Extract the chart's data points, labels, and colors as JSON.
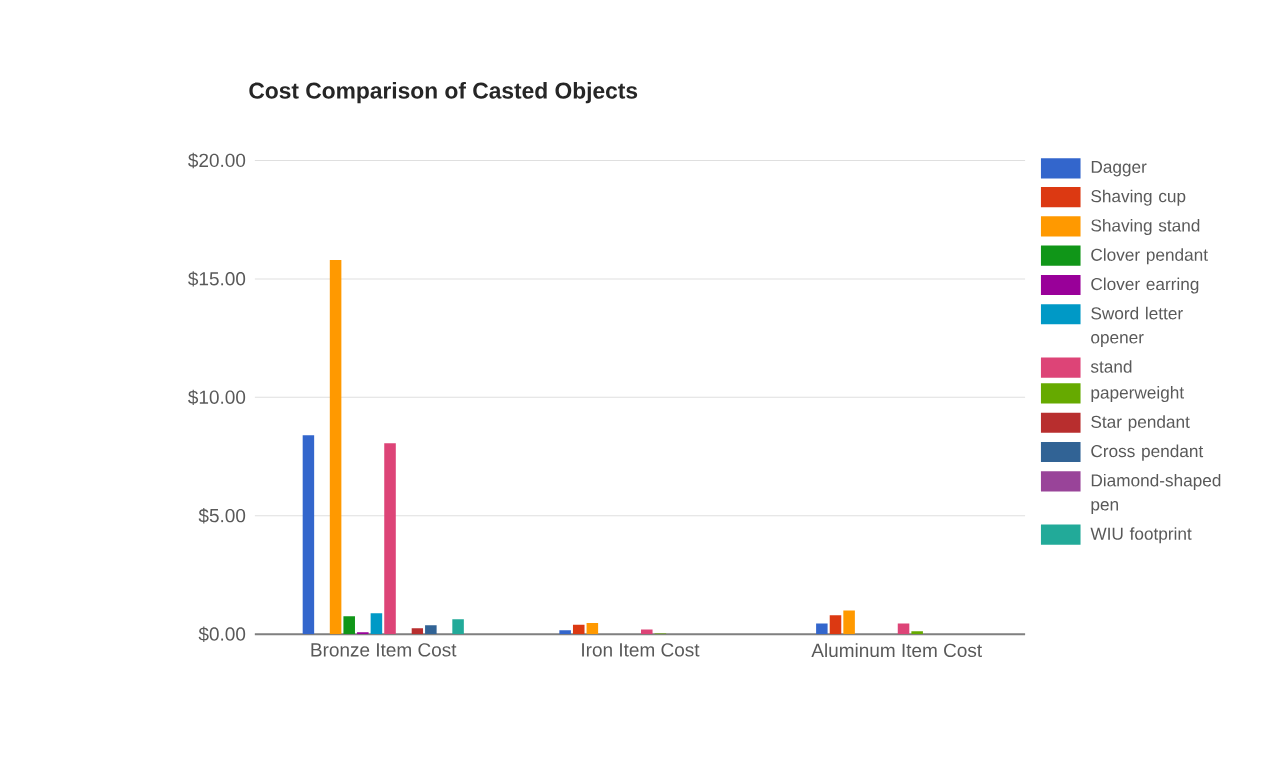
{
  "chart_data": {
    "type": "bar",
    "title": "Cost Comparison of Casted Objects",
    "categories": [
      "Bronze Item Cost",
      "Iron Item Cost",
      "Aluminum Item Cost"
    ],
    "series": [
      {
        "name": "Dagger",
        "color": "#3366cc",
        "values": [
          8.4,
          0.17,
          0.45
        ]
      },
      {
        "name": "Shaving cup",
        "color": "#dc3912",
        "values": [
          0,
          0.4,
          0.8
        ]
      },
      {
        "name": "Shaving stand",
        "color": "#ff9900",
        "values": [
          15.8,
          0.47,
          1.0
        ]
      },
      {
        "name": "Clover pendant",
        "color": "#109618",
        "values": [
          0.76,
          0,
          0
        ]
      },
      {
        "name": "Clover earring",
        "color": "#990099",
        "values": [
          0.08,
          0,
          0
        ]
      },
      {
        "name": "Sword letter opener",
        "color": "#0099c6",
        "values": [
          0.89,
          0,
          0
        ]
      },
      {
        "name": "stand",
        "color": "#dd4477",
        "values": [
          8.06,
          0.2,
          0.45
        ]
      },
      {
        "name": "paperweight",
        "color": "#66aa00",
        "values": [
          0,
          0.03,
          0.12
        ]
      },
      {
        "name": "Star pendant",
        "color": "#b82e2e",
        "values": [
          0.25,
          0,
          0
        ]
      },
      {
        "name": "Cross pendant",
        "color": "#316395",
        "values": [
          0.38,
          0,
          0
        ]
      },
      {
        "name": "Diamond-shaped pen",
        "color": "#994499",
        "values": [
          0,
          0,
          0
        ]
      },
      {
        "name": "WIU footprint",
        "color": "#22aa99",
        "values": [
          0.63,
          0,
          0
        ]
      }
    ],
    "ylim": [
      0,
      20
    ],
    "yticks": [
      {
        "value": 0,
        "label": "$0.00"
      },
      {
        "value": 5,
        "label": "$5.00"
      },
      {
        "value": 10,
        "label": "$10.00"
      },
      {
        "value": 15,
        "label": "$15.00"
      },
      {
        "value": 20,
        "label": "$20.00"
      }
    ],
    "grid": "y",
    "legend": "right"
  }
}
